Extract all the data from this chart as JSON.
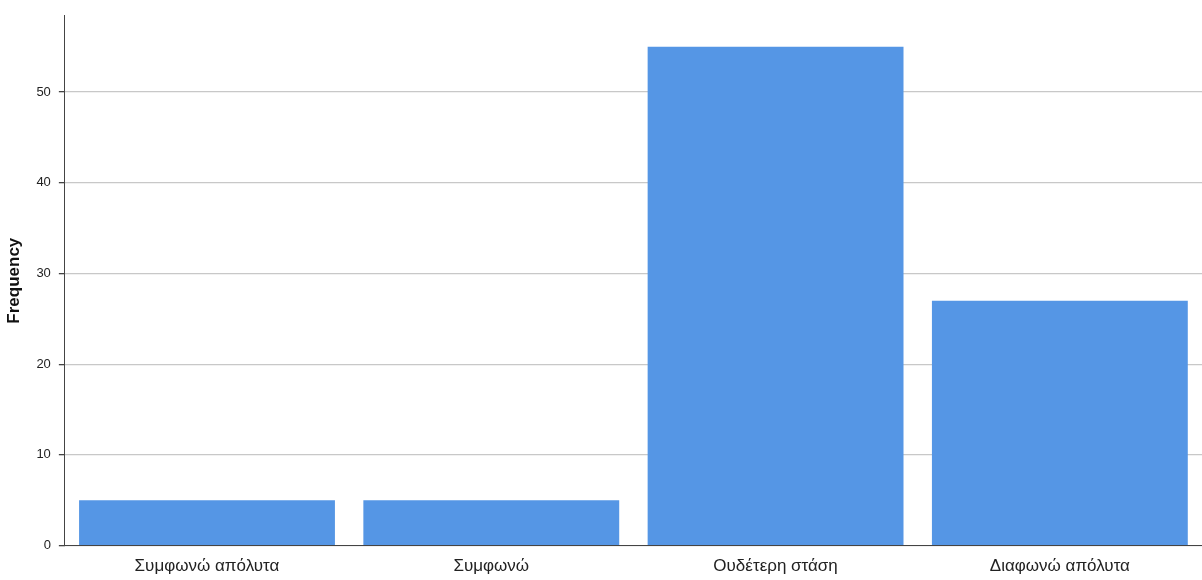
{
  "chart_data": {
    "type": "bar",
    "ylabel": "Frequency",
    "categories": [
      "Συμφωνώ απόλυτα",
      "Συμφωνώ",
      "Ουδέτερη στάση",
      "Διαφωνώ απόλυτα"
    ],
    "values": [
      5,
      5,
      55,
      27
    ],
    "color": "#5596e5",
    "ylim": [
      0,
      58.4
    ],
    "yticks": [
      0,
      10,
      20,
      30,
      40,
      50
    ],
    "grid": "y"
  }
}
